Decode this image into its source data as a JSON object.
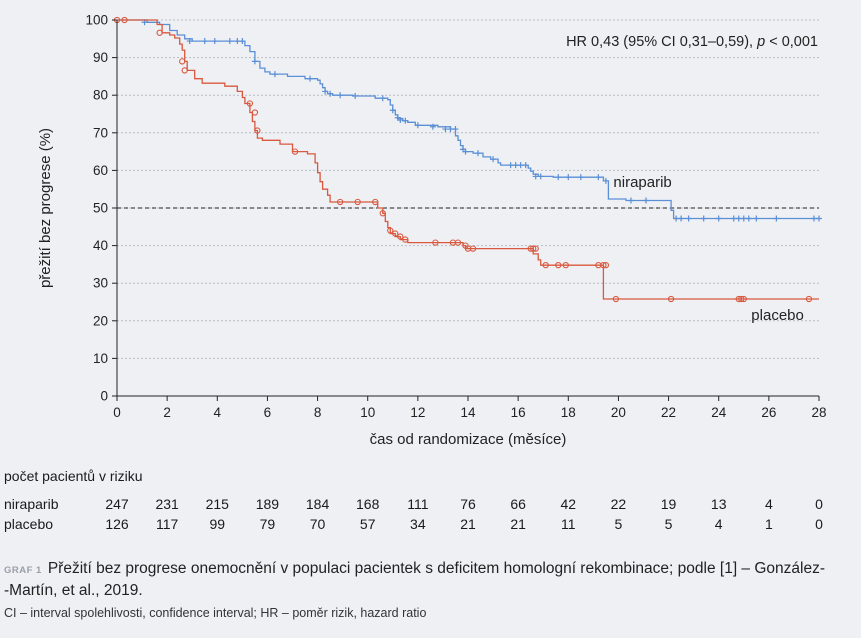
{
  "chart_data": {
    "type": "line",
    "subtype": "kaplan-meier",
    "xlabel": "čas od randomizace (měsíce)",
    "ylabel": "přežití bez progrese (%)",
    "xlim": [
      0,
      28
    ],
    "ylim": [
      0,
      100
    ],
    "xticks": [
      0,
      2,
      4,
      6,
      8,
      10,
      12,
      14,
      16,
      18,
      20,
      22,
      24,
      26,
      28
    ],
    "yticks": [
      0,
      10,
      20,
      30,
      40,
      50,
      60,
      70,
      80,
      90,
      100
    ],
    "grid": "horizontal dotted",
    "reference_line": {
      "y": 50,
      "style": "dashed"
    },
    "annotation": {
      "prefix": "HR 0,43 (95% CI 0,31–0,59), ",
      "italic": "p",
      "suffix": " < 0,001"
    },
    "series": [
      {
        "name": "niraparib",
        "color": "#5b8fd6",
        "marker": "plus",
        "steps": [
          [
            0,
            100
          ],
          [
            1.2,
            99.4
          ],
          [
            1.7,
            98.8
          ],
          [
            2.1,
            97.2
          ],
          [
            2.4,
            96.0
          ],
          [
            2.7,
            95.0
          ],
          [
            3.0,
            94.4
          ],
          [
            5.1,
            93.2
          ],
          [
            5.3,
            91.6
          ],
          [
            5.5,
            89.0
          ],
          [
            5.7,
            87.2
          ],
          [
            5.9,
            86.2
          ],
          [
            6.1,
            85.6
          ],
          [
            6.8,
            85.0
          ],
          [
            7.5,
            84.4
          ],
          [
            8.0,
            84.0
          ],
          [
            8.1,
            83.0
          ],
          [
            8.2,
            82.0
          ],
          [
            8.3,
            81.0
          ],
          [
            8.4,
            80.4
          ],
          [
            8.6,
            80.0
          ],
          [
            9.4,
            79.8
          ],
          [
            10.3,
            79.2
          ],
          [
            10.8,
            78.8
          ],
          [
            10.9,
            77.4
          ],
          [
            11.0,
            76.0
          ],
          [
            11.1,
            74.8
          ],
          [
            11.2,
            73.8
          ],
          [
            11.4,
            73.2
          ],
          [
            11.6,
            72.8
          ],
          [
            11.9,
            72.0
          ],
          [
            12.8,
            71.6
          ],
          [
            13.3,
            71.0
          ],
          [
            13.5,
            69.2
          ],
          [
            13.6,
            68.0
          ],
          [
            13.7,
            66.6
          ],
          [
            13.8,
            65.6
          ],
          [
            13.9,
            65.0
          ],
          [
            14.2,
            64.6
          ],
          [
            14.6,
            63.6
          ],
          [
            14.9,
            63.0
          ],
          [
            15.2,
            62.0
          ],
          [
            15.3,
            61.4
          ],
          [
            16.4,
            60.6
          ],
          [
            16.5,
            59.8
          ],
          [
            16.6,
            59.0
          ],
          [
            16.8,
            58.4
          ],
          [
            17.4,
            58.2
          ],
          [
            19.4,
            57.2
          ],
          [
            19.6,
            52.4
          ],
          [
            20.3,
            52.0
          ],
          [
            22.1,
            49.4
          ],
          [
            22.2,
            47.2
          ]
        ],
        "censored": [
          [
            1.1,
            99.4
          ],
          [
            2.9,
            94.4
          ],
          [
            3.5,
            94.4
          ],
          [
            3.9,
            94.4
          ],
          [
            4.5,
            94.4
          ],
          [
            4.8,
            94.4
          ],
          [
            5.0,
            94.4
          ],
          [
            5.5,
            89.0
          ],
          [
            6.3,
            85.6
          ],
          [
            7.7,
            84.4
          ],
          [
            8.3,
            81.0
          ],
          [
            8.5,
            80.4
          ],
          [
            8.9,
            80.0
          ],
          [
            9.5,
            79.8
          ],
          [
            10.6,
            79.2
          ],
          [
            11.0,
            76.0
          ],
          [
            11.2,
            74.0
          ],
          [
            11.3,
            73.4
          ],
          [
            11.5,
            73.2
          ],
          [
            12.0,
            72.0
          ],
          [
            12.6,
            71.6
          ],
          [
            13.1,
            71.0
          ],
          [
            13.3,
            71.0
          ],
          [
            13.5,
            71.0
          ],
          [
            13.8,
            65.6
          ],
          [
            13.9,
            65.0
          ],
          [
            14.4,
            64.6
          ],
          [
            15.0,
            63.0
          ],
          [
            15.7,
            61.4
          ],
          [
            15.9,
            61.4
          ],
          [
            16.1,
            61.4
          ],
          [
            16.3,
            61.4
          ],
          [
            16.7,
            58.4
          ],
          [
            16.9,
            58.4
          ],
          [
            17.6,
            58.2
          ],
          [
            18.0,
            58.2
          ],
          [
            18.5,
            58.2
          ],
          [
            19.2,
            58.2
          ],
          [
            19.5,
            57.2
          ],
          [
            20.5,
            52.0
          ],
          [
            21.1,
            52.0
          ],
          [
            22.3,
            47.2
          ],
          [
            22.5,
            47.2
          ],
          [
            22.8,
            47.2
          ],
          [
            23.4,
            47.2
          ],
          [
            24.0,
            47.2
          ],
          [
            24.6,
            47.2
          ],
          [
            24.8,
            47.2
          ],
          [
            25.0,
            47.2
          ],
          [
            25.2,
            47.2
          ],
          [
            25.5,
            47.2
          ],
          [
            26.3,
            47.2
          ],
          [
            27.8,
            47.2
          ],
          [
            28.0,
            47.2
          ]
        ]
      },
      {
        "name": "placebo",
        "color": "#d9583e",
        "marker": "circle",
        "steps": [
          [
            0,
            100
          ],
          [
            1.6,
            98.8
          ],
          [
            1.8,
            96.6
          ],
          [
            2.1,
            96.0
          ],
          [
            2.3,
            95.2
          ],
          [
            2.5,
            93.6
          ],
          [
            2.6,
            92.0
          ],
          [
            2.7,
            89.0
          ],
          [
            2.8,
            86.6
          ],
          [
            3.1,
            84.4
          ],
          [
            3.4,
            83.2
          ],
          [
            4.3,
            82.4
          ],
          [
            4.8,
            81.0
          ],
          [
            5.0,
            79.4
          ],
          [
            5.1,
            77.8
          ],
          [
            5.3,
            75.4
          ],
          [
            5.4,
            73.0
          ],
          [
            5.5,
            70.6
          ],
          [
            5.6,
            68.6
          ],
          [
            5.8,
            68.0
          ],
          [
            6.5,
            67.0
          ],
          [
            7.0,
            65.0
          ],
          [
            7.6,
            64.4
          ],
          [
            7.9,
            62.0
          ],
          [
            8.0,
            59.4
          ],
          [
            8.1,
            57.0
          ],
          [
            8.2,
            55.0
          ],
          [
            8.4,
            53.4
          ],
          [
            8.5,
            51.6
          ],
          [
            10.4,
            50.0
          ],
          [
            10.6,
            48.6
          ],
          [
            10.7,
            46.4
          ],
          [
            10.8,
            44.8
          ],
          [
            10.9,
            43.2
          ],
          [
            11.1,
            42.4
          ],
          [
            11.3,
            41.6
          ],
          [
            11.6,
            40.8
          ],
          [
            13.8,
            40.0
          ],
          [
            13.9,
            39.2
          ],
          [
            16.6,
            37.8
          ],
          [
            16.8,
            36.2
          ],
          [
            16.9,
            34.8
          ],
          [
            19.4,
            25.8
          ]
        ],
        "censored": [
          [
            0,
            100
          ],
          [
            0.3,
            100
          ],
          [
            1.7,
            96.6
          ],
          [
            2.6,
            89.0
          ],
          [
            2.7,
            86.6
          ],
          [
            5.3,
            77.8
          ],
          [
            5.5,
            75.4
          ],
          [
            5.6,
            70.6
          ],
          [
            7.1,
            65.0
          ],
          [
            8.9,
            51.6
          ],
          [
            9.6,
            51.6
          ],
          [
            10.3,
            51.6
          ],
          [
            10.6,
            48.6
          ],
          [
            10.9,
            44.0
          ],
          [
            11.1,
            43.2
          ],
          [
            11.3,
            42.4
          ],
          [
            11.5,
            41.6
          ],
          [
            12.7,
            40.8
          ],
          [
            13.4,
            40.8
          ],
          [
            13.6,
            40.8
          ],
          [
            13.9,
            40.0
          ],
          [
            14.0,
            39.2
          ],
          [
            14.2,
            39.2
          ],
          [
            16.5,
            39.2
          ],
          [
            16.6,
            39.2
          ],
          [
            16.7,
            39.2
          ],
          [
            17.1,
            34.8
          ],
          [
            17.6,
            34.8
          ],
          [
            17.9,
            34.8
          ],
          [
            19.2,
            34.8
          ],
          [
            19.4,
            34.8
          ],
          [
            19.5,
            34.8
          ],
          [
            19.9,
            25.8
          ],
          [
            22.1,
            25.8
          ],
          [
            24.8,
            25.8
          ],
          [
            24.9,
            25.8
          ],
          [
            25.0,
            25.8
          ],
          [
            27.6,
            25.8
          ]
        ]
      }
    ]
  },
  "risk_table": {
    "title": "počet pacientů v riziku",
    "times": [
      0,
      2,
      4,
      6,
      8,
      10,
      12,
      14,
      16,
      18,
      20,
      22,
      24,
      26,
      28
    ],
    "rows": [
      {
        "label": "niraparib",
        "values": [
          "247",
          "231",
          "215",
          "189",
          "184",
          "168",
          "111",
          "76",
          "66",
          "42",
          "22",
          "19",
          "13",
          "4",
          "0"
        ]
      },
      {
        "label": "placebo",
        "values": [
          "126",
          "117",
          "99",
          "79",
          "70",
          "57",
          "34",
          "21",
          "21",
          "11",
          "5",
          "5",
          "4",
          "1",
          "0"
        ]
      }
    ]
  },
  "caption": {
    "tag": "GRAF 1",
    "line1": "Přežití bez progrese onemocnění v populaci pacientek s deficitem homologní rekombinace; podle [1] – González-",
    "line2": "-Martín, et al., 2019."
  },
  "footnote": "CI – interval spolehlivosti, confidence interval; HR – poměr rizik, hazard ratio"
}
